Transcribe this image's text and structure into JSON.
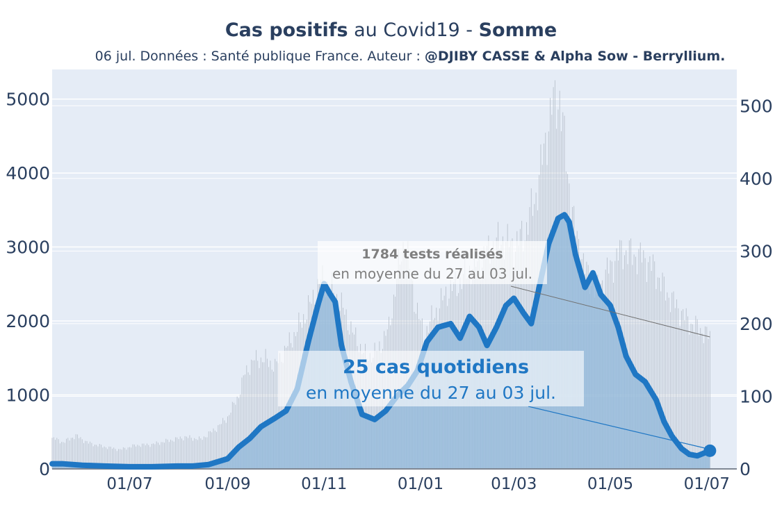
{
  "title": {
    "bold1": "Cas positifs",
    "normal": " au Covid19 - ",
    "bold2": "Somme"
  },
  "subtitle": {
    "normal": "06 jul. Données : Santé publique France. Auteur : ",
    "bold": "@DJIBY CASSE & Alpha Sow - Berryllium."
  },
  "annotations": {
    "tests": {
      "value_line": "1784 tests réalisés",
      "period_line": "en moyenne du 27 au 03 jul."
    },
    "cases": {
      "value_line": "25 cas quotidiens",
      "period_line": "en moyenne du 27 au 03 jul."
    }
  },
  "colors": {
    "plot_bg": "#e5ecf6",
    "case_line": "#1f77c4",
    "case_area": "#8fb7d9",
    "tests_bars": "#b9c1cc",
    "tests_text": "#7f7f7f",
    "cases_text": "#1f77c4",
    "axis_text": "#2a3f5f"
  },
  "chart_data": {
    "type": "line",
    "x_labels": [
      "01/07",
      "01/09",
      "01/11",
      "01/01",
      "01/03",
      "01/05",
      "01/07"
    ],
    "x_range": [
      "2020-05-13",
      "2021-07-20"
    ],
    "y_left": {
      "ticks": [
        0,
        1000,
        2000,
        3000,
        4000,
        5000
      ],
      "range": [
        0,
        5400
      ]
    },
    "y_right": {
      "ticks": [
        0,
        100,
        200,
        300,
        400,
        500
      ],
      "range": [
        0,
        550
      ]
    },
    "series": [
      {
        "role": "tests_daily",
        "axis": "left",
        "points": [
          [
            "2020-05-13",
            420
          ],
          [
            "2020-05-20",
            360
          ],
          [
            "2020-05-28",
            450
          ],
          [
            "2020-06-05",
            350
          ],
          [
            "2020-06-15",
            300
          ],
          [
            "2020-06-25",
            260
          ],
          [
            "2020-07-05",
            320
          ],
          [
            "2020-07-15",
            330
          ],
          [
            "2020-07-25",
            380
          ],
          [
            "2020-08-05",
            430
          ],
          [
            "2020-08-15",
            400
          ],
          [
            "2020-08-25",
            550
          ],
          [
            "2020-09-01",
            700
          ],
          [
            "2020-09-08",
            1000
          ],
          [
            "2020-09-12",
            1300
          ],
          [
            "2020-09-18",
            1480
          ],
          [
            "2020-09-25",
            1480
          ],
          [
            "2020-10-01",
            1380
          ],
          [
            "2020-10-10",
            1700
          ],
          [
            "2020-10-18",
            2000
          ],
          [
            "2020-10-25",
            2300
          ],
          [
            "2020-10-30",
            2550
          ],
          [
            "2020-11-05",
            2450
          ],
          [
            "2020-11-12",
            2200
          ],
          [
            "2020-11-20",
            1800
          ],
          [
            "2020-11-28",
            1500
          ],
          [
            "2020-12-05",
            1600
          ],
          [
            "2020-12-12",
            1900
          ],
          [
            "2020-12-18",
            2700
          ],
          [
            "2020-12-22",
            3100
          ],
          [
            "2020-12-28",
            2300
          ],
          [
            "2021-01-03",
            1800
          ],
          [
            "2021-01-10",
            2100
          ],
          [
            "2021-01-18",
            2400
          ],
          [
            "2021-01-25",
            2500
          ],
          [
            "2021-02-01",
            2700
          ],
          [
            "2021-02-08",
            2800
          ],
          [
            "2021-02-15",
            3000
          ],
          [
            "2021-02-22",
            3100
          ],
          [
            "2021-03-01",
            3000
          ],
          [
            "2021-03-08",
            3200
          ],
          [
            "2021-03-15",
            3700
          ],
          [
            "2021-03-20",
            4300
          ],
          [
            "2021-03-25",
            4900
          ],
          [
            "2021-03-30",
            5030
          ],
          [
            "2021-04-03",
            4200
          ],
          [
            "2021-04-08",
            3300
          ],
          [
            "2021-04-15",
            2700
          ],
          [
            "2021-04-22",
            2400
          ],
          [
            "2021-04-30",
            2700
          ],
          [
            "2021-05-08",
            2950
          ],
          [
            "2021-05-15",
            2900
          ],
          [
            "2021-05-22",
            2850
          ],
          [
            "2021-05-29",
            2700
          ],
          [
            "2021-06-05",
            2400
          ],
          [
            "2021-06-12",
            2200
          ],
          [
            "2021-06-19",
            2000
          ],
          [
            "2021-06-26",
            1900
          ],
          [
            "2021-07-03",
            1784
          ]
        ]
      },
      {
        "role": "cases_daily_avg",
        "axis": "right",
        "points": [
          [
            "2020-05-13",
            7
          ],
          [
            "2020-05-20",
            7
          ],
          [
            "2020-06-01",
            5
          ],
          [
            "2020-06-15",
            4
          ],
          [
            "2020-07-01",
            3
          ],
          [
            "2020-07-15",
            3
          ],
          [
            "2020-08-01",
            4
          ],
          [
            "2020-08-10",
            4
          ],
          [
            "2020-08-20",
            6
          ],
          [
            "2020-09-01",
            14
          ],
          [
            "2020-09-08",
            30
          ],
          [
            "2020-09-15",
            42
          ],
          [
            "2020-09-22",
            58
          ],
          [
            "2020-10-01",
            70
          ],
          [
            "2020-10-08",
            80
          ],
          [
            "2020-10-15",
            110
          ],
          [
            "2020-10-22",
            175
          ],
          [
            "2020-10-28",
            225
          ],
          [
            "2020-11-01",
            255
          ],
          [
            "2020-11-05",
            240
          ],
          [
            "2020-11-08",
            230
          ],
          [
            "2020-11-12",
            170
          ],
          [
            "2020-11-18",
            120
          ],
          [
            "2020-11-25",
            75
          ],
          [
            "2020-12-03",
            68
          ],
          [
            "2020-12-10",
            80
          ],
          [
            "2020-12-17",
            100
          ],
          [
            "2020-12-24",
            115
          ],
          [
            "2020-12-30",
            135
          ],
          [
            "2021-01-05",
            175
          ],
          [
            "2021-01-12",
            195
          ],
          [
            "2021-01-20",
            200
          ],
          [
            "2021-01-26",
            180
          ],
          [
            "2021-02-01",
            210
          ],
          [
            "2021-02-07",
            195
          ],
          [
            "2021-02-12",
            170
          ],
          [
            "2021-02-18",
            195
          ],
          [
            "2021-02-24",
            225
          ],
          [
            "2021-03-01",
            235
          ],
          [
            "2021-03-07",
            215
          ],
          [
            "2021-03-12",
            200
          ],
          [
            "2021-03-17",
            250
          ],
          [
            "2021-03-23",
            310
          ],
          [
            "2021-03-29",
            345
          ],
          [
            "2021-04-02",
            350
          ],
          [
            "2021-04-05",
            340
          ],
          [
            "2021-04-09",
            295
          ],
          [
            "2021-04-15",
            250
          ],
          [
            "2021-04-20",
            270
          ],
          [
            "2021-04-25",
            240
          ],
          [
            "2021-05-01",
            225
          ],
          [
            "2021-05-06",
            195
          ],
          [
            "2021-05-11",
            155
          ],
          [
            "2021-05-17",
            130
          ],
          [
            "2021-05-23",
            120
          ],
          [
            "2021-05-30",
            95
          ],
          [
            "2021-06-04",
            65
          ],
          [
            "2021-06-09",
            45
          ],
          [
            "2021-06-15",
            28
          ],
          [
            "2021-06-20",
            20
          ],
          [
            "2021-06-25",
            18
          ],
          [
            "2021-07-03",
            25
          ]
        ]
      }
    ]
  }
}
